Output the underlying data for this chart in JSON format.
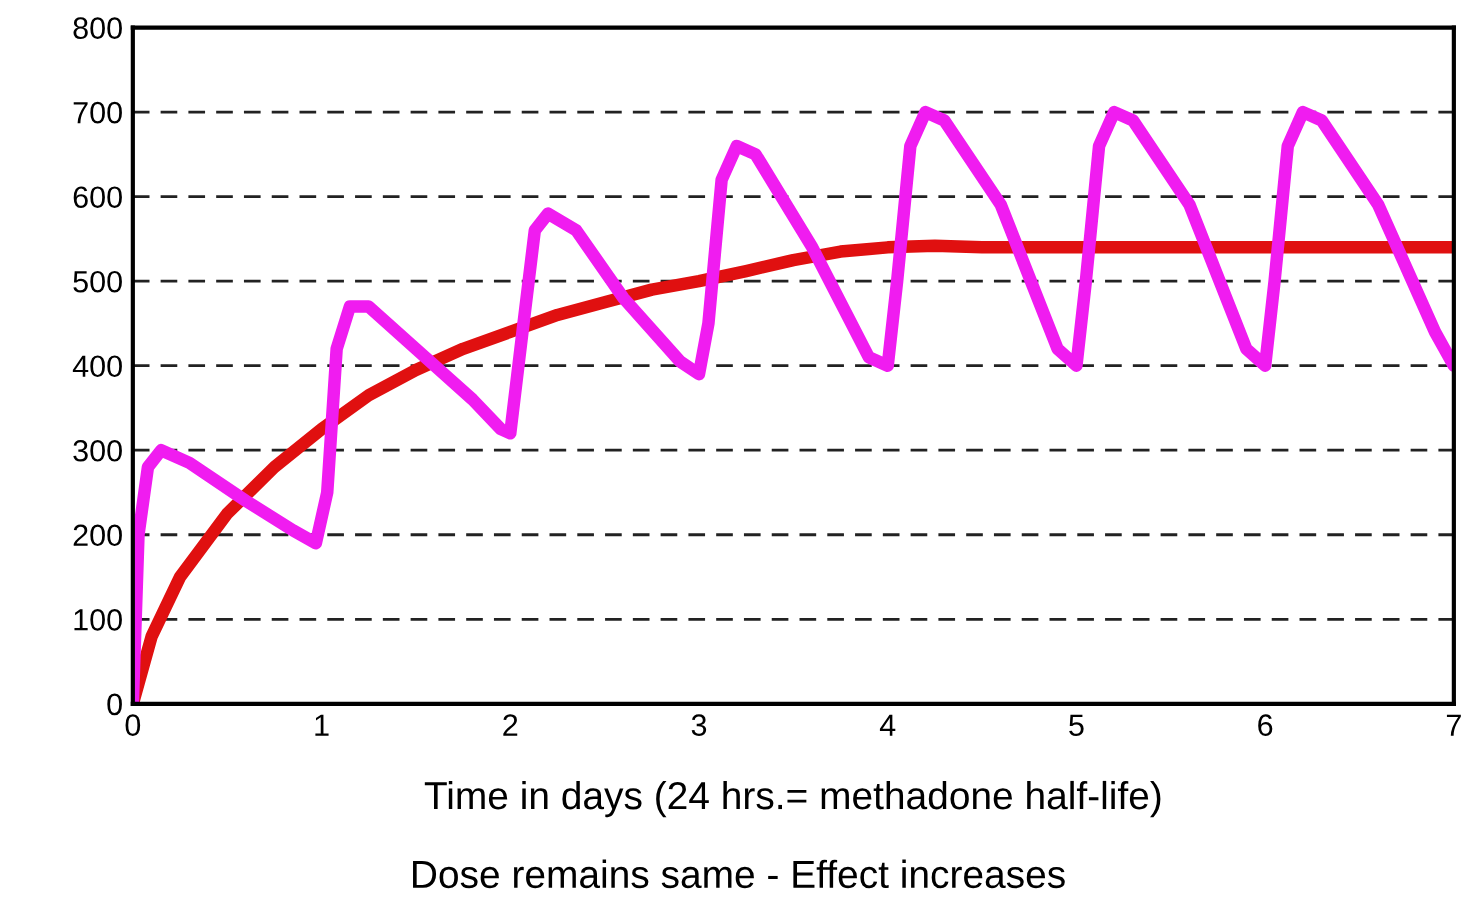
{
  "chart_data": {
    "type": "line",
    "xlabel": "Time in days (24 hrs.= methadone half-life)",
    "annotations": [
      "Dose remains same - Effect increases"
    ],
    "xlim": [
      0,
      7
    ],
    "ylim": [
      0,
      800
    ],
    "xticks": [
      0,
      1,
      2,
      3,
      4,
      5,
      6,
      7
    ],
    "yticks": [
      0,
      100,
      200,
      300,
      400,
      500,
      600,
      700,
      800
    ],
    "grid": "y",
    "series": [
      {
        "color": "#e01010",
        "x": [
          0,
          0.1,
          0.25,
          0.5,
          0.75,
          1,
          1.25,
          1.5,
          1.75,
          2,
          2.25,
          2.5,
          2.75,
          3,
          3.25,
          3.5,
          3.75,
          4,
          4.25,
          4.5,
          5,
          6,
          7
        ],
        "values": [
          0,
          80,
          150,
          225,
          280,
          325,
          365,
          395,
          420,
          440,
          460,
          475,
          490,
          500,
          512,
          525,
          535,
          540,
          542,
          540,
          540,
          540,
          540
        ]
      },
      {
        "color": "#f01cf0",
        "x": [
          0,
          0.03,
          0.08,
          0.15,
          0.3,
          0.6,
          0.85,
          0.97,
          1.03,
          1.08,
          1.15,
          1.25,
          1.5,
          1.8,
          1.95,
          2.0,
          2.07,
          2.13,
          2.2,
          2.35,
          2.6,
          2.9,
          3.0,
          3.05,
          3.12,
          3.2,
          3.3,
          3.6,
          3.9,
          4.0,
          4.05,
          4.12,
          4.2,
          4.3,
          4.6,
          4.9,
          5.0,
          5.05,
          5.12,
          5.2,
          5.3,
          5.6,
          5.9,
          6.0,
          6.05,
          6.12,
          6.2,
          6.3,
          6.6,
          6.9,
          7.0
        ],
        "values": [
          0,
          200,
          280,
          300,
          285,
          240,
          205,
          190,
          250,
          420,
          470,
          470,
          420,
          360,
          325,
          320,
          450,
          560,
          580,
          560,
          480,
          405,
          390,
          450,
          620,
          660,
          650,
          540,
          410,
          400,
          500,
          660,
          700,
          690,
          590,
          420,
          400,
          500,
          660,
          700,
          690,
          590,
          420,
          400,
          500,
          660,
          700,
          690,
          590,
          440,
          400
        ]
      }
    ]
  }
}
